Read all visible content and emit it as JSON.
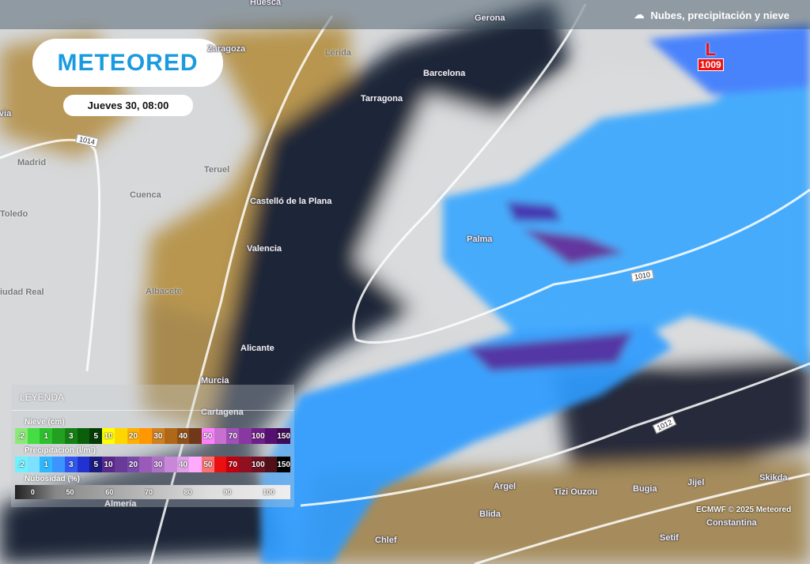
{
  "header": {
    "layer_title": "Nubes, precipitación y nieve",
    "layer_icon": "cloud-rain-icon"
  },
  "brand": {
    "logo": "METEORED",
    "brand_color": "#1a9be0"
  },
  "forecast": {
    "datetime": "Jueves 30, 08:00"
  },
  "pressure": {
    "low_symbol": "L",
    "low_value": "1009",
    "isobars": [
      "1014",
      "1010",
      "1012"
    ]
  },
  "cities": [
    "Huesca",
    "Gerona",
    "Zaragoza",
    "Lérida",
    "Barcelona",
    "Tarragona",
    "Segovia",
    "Madrid",
    "Teruel",
    "Cuenca",
    "Toledo",
    "Castelló de la Plana",
    "Palma",
    "Valencia",
    "Ciudad Real",
    "Albacete",
    "Alicante",
    "Murcia",
    "Cartagena",
    "Almería",
    "Argel",
    "Tizi Ouzou",
    "Bugia",
    "Jijel",
    "Skikda",
    "Blida",
    "Constantina",
    "Setif",
    "Chlef"
  ],
  "legend": {
    "title": "LEYENDA",
    "snow": {
      "label": "Nieve (cm)",
      "ticks": [
        ".2",
        "",
        "1",
        "",
        "3",
        "",
        "5",
        "10",
        "",
        "20",
        "",
        "30",
        "",
        "40",
        "",
        "50",
        "",
        "70",
        "",
        "100",
        "",
        "150"
      ],
      "colors": [
        "#8de87a",
        "#44dd44",
        "#2cc02c",
        "#22a022",
        "#148014",
        "#0a600a",
        "#053a05",
        "#ffff00",
        "#ffd700",
        "#ffb000",
        "#ff9800",
        "#d08020",
        "#b06818",
        "#905018",
        "#703818",
        "#ff80ff",
        "#c870d0",
        "#a050b8",
        "#8838a0",
        "#701f88",
        "#551070",
        "#400a58"
      ]
    },
    "precip": {
      "label": "Precipitación (l/m²)",
      "ticks": [
        ".2",
        "",
        "1",
        "",
        "3",
        "",
        "5",
        "10",
        "",
        "20",
        "",
        "30",
        "",
        "40",
        "",
        "50",
        "",
        "70",
        "",
        "100",
        "",
        "150"
      ],
      "colors": [
        "#6ef2ff",
        "#7de0ff",
        "#2fb8ff",
        "#3c94ff",
        "#3058f0",
        "#2232d0",
        "#1a1a80",
        "#5a2a8a",
        "#6a3a9a",
        "#7a4aaa",
        "#9a5ab8",
        "#b070c8",
        "#c888d8",
        "#e0a0e8",
        "#ffaaff",
        "#ff7070",
        "#e81010",
        "#c00010",
        "#901020",
        "#701020",
        "#501018",
        "#000000"
      ]
    },
    "cloud": {
      "label": "Nubosidad (%)",
      "ticks": [
        "0",
        "50",
        "60",
        "70",
        "80",
        "90",
        "100"
      ]
    }
  },
  "credit": "ECMWF © 2025 Meteored"
}
